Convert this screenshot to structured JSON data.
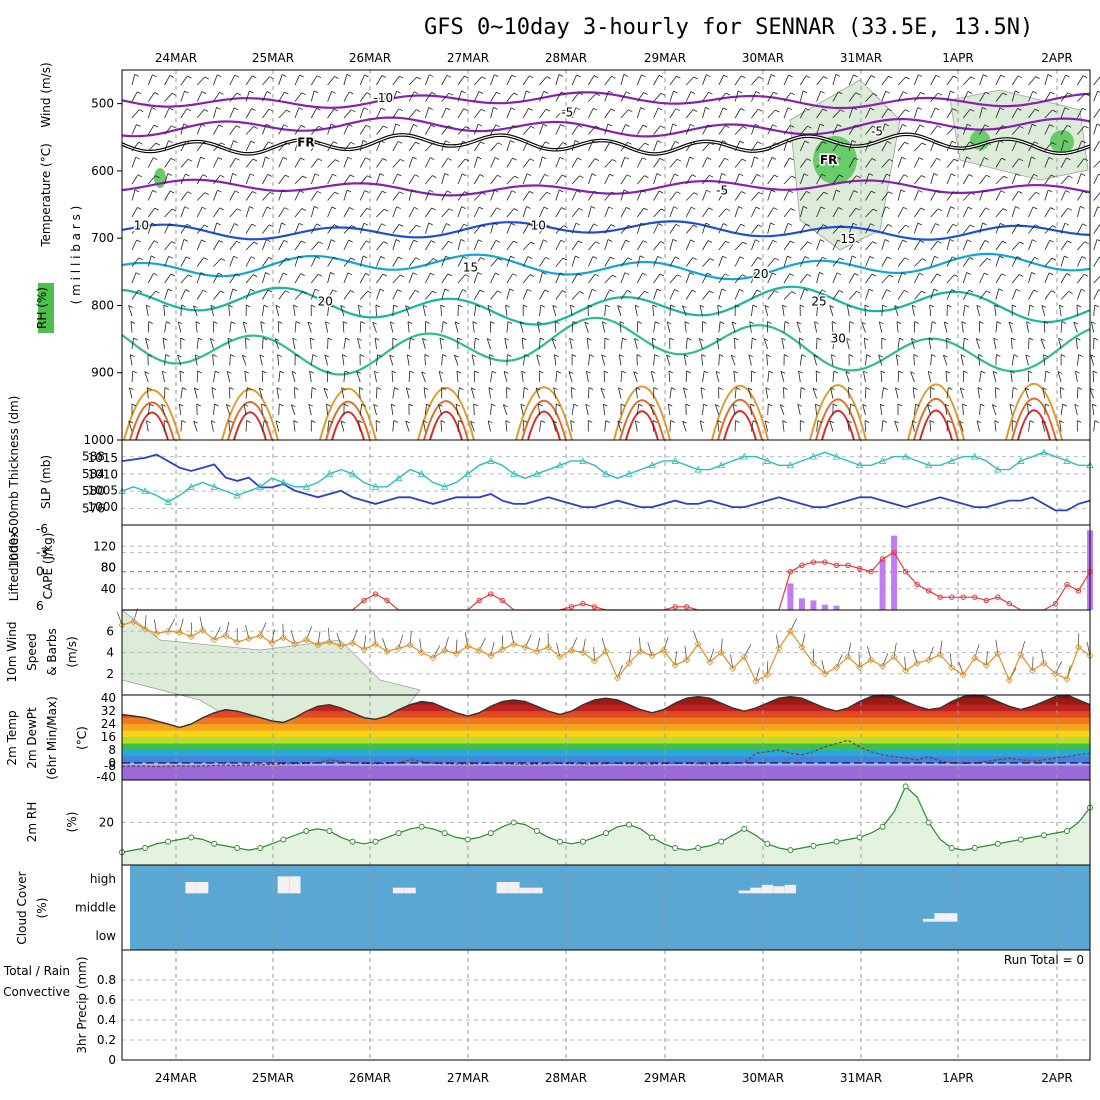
{
  "title": "GFS 0~10day 3-hourly for SENNAR (33.5E, 13.5N)",
  "date_labels": [
    "24MAR",
    "25MAR",
    "26MAR",
    "27MAR",
    "28MAR",
    "29MAR",
    "30MAR",
    "31MAR",
    "1APR",
    "2APR"
  ],
  "run_total": "Run Total = 0",
  "colors": {
    "temp_5": "#8a1fb4",
    "temp_10": "#1f4fd6",
    "temp_15": "#10a6d8",
    "temp_20": "#14b7a0",
    "temp_25": "#2bbf8a",
    "temp_30": "#e09a2a",
    "slp": "#2b3fc4",
    "thickness": "#2cbdbd",
    "cape": "#c07cf0",
    "lifted": "#e43a3a",
    "wind10": "#e0902a",
    "rh2m": "#2e8b2e",
    "cloud": "#5aa7d4"
  },
  "chart_data": [
    {
      "type": "line",
      "panel": "upper-air",
      "ylabel_parts": [
        "RH (%)",
        "Temperature (°C)",
        "Wind (m/s)"
      ],
      "yunit": "( m i l l i b a r s )",
      "ylim": [
        1000,
        450
      ],
      "yticks": [
        500,
        600,
        700,
        800,
        900,
        1000
      ],
      "contour_labels": [
        {
          "text": "-10",
          "x": 0.27,
          "p": 490
        },
        {
          "text": "-5",
          "x": 0.46,
          "p": 512
        },
        {
          "text": "-5",
          "x": 0.78,
          "p": 540
        },
        {
          "text": "-5",
          "x": 0.62,
          "p": 628
        },
        {
          "text": "FR",
          "x": 0.19,
          "p": 556
        },
        {
          "text": "FR",
          "x": 0.73,
          "p": 582
        },
        {
          "text": "10",
          "x": 0.02,
          "p": 680
        },
        {
          "text": "10",
          "x": 0.43,
          "p": 680
        },
        {
          "text": "15",
          "x": 0.36,
          "p": 742
        },
        {
          "text": "15",
          "x": 0.75,
          "p": 700
        },
        {
          "text": "20",
          "x": 0.21,
          "p": 793
        },
        {
          "text": "20",
          "x": 0.66,
          "p": 752
        },
        {
          "text": "25",
          "x": 0.72,
          "p": 793
        },
        {
          "text": "30",
          "x": 0.74,
          "p": 848
        }
      ]
    },
    {
      "type": "line",
      "panel": "slp-thickness",
      "ylabel_left": "1000-500mb Thickness (dm)",
      "ylabel_right": "SLP (mb)",
      "yticks_left": [
        576,
        580,
        584,
        588
      ],
      "yticks_right": [
        1000,
        1005,
        1010,
        1015
      ],
      "series": [
        {
          "name": "SLP",
          "values": [
            1014,
            1014.5,
            1015,
            1016,
            1014,
            1012,
            1011,
            1012,
            1013,
            1009,
            1008,
            1009,
            1006,
            1006,
            1007,
            1005,
            1004,
            1003,
            1004,
            1005,
            1003,
            1002,
            1001,
            1002,
            1003,
            1003,
            1002,
            1001,
            1002,
            1003,
            1003,
            1003,
            1004,
            1002,
            1001,
            1001,
            1002,
            1003,
            1002,
            1001,
            1000,
            1000,
            1001,
            1002,
            1001,
            1000,
            1000,
            1001,
            1002,
            1001,
            1001,
            1002,
            1001,
            1000,
            1000,
            1001,
            1002,
            1003,
            1002,
            1001,
            1000,
            1000,
            1001,
            1002,
            1003,
            1003,
            1002,
            1001,
            1000,
            1001,
            1002,
            1003,
            1002,
            1001,
            1000,
            1000,
            1001,
            1002,
            1002,
            1003,
            1001,
            999,
            999,
            1001,
            1002
          ]
        },
        {
          "name": "Thickness",
          "values": [
            580,
            581,
            580,
            579,
            577.5,
            579,
            581,
            582,
            581,
            580,
            579,
            580,
            581,
            583,
            582,
            581,
            581,
            582,
            584,
            585,
            584,
            582,
            581,
            581,
            583,
            585,
            584,
            582,
            581,
            582,
            584,
            586,
            587,
            586,
            584,
            583,
            584,
            585,
            586,
            587,
            587,
            586,
            584,
            583,
            584,
            585,
            586,
            587,
            587,
            586,
            585,
            585,
            586,
            587,
            588,
            588,
            587,
            586,
            586,
            587,
            588,
            589,
            588,
            587,
            586,
            586,
            587,
            588,
            588,
            587,
            586,
            586,
            587,
            588,
            588,
            587,
            585,
            585,
            587,
            588,
            589,
            588,
            587,
            586,
            586
          ]
        }
      ]
    },
    {
      "type": "bar",
      "panel": "cape-lifted",
      "ylabel_left": "Lifted Index",
      "ylabel_right": "CAPE (J/kg)",
      "yticks_li": [
        6,
        0,
        -3,
        -6
      ],
      "yticks_cape": [
        40,
        80,
        120
      ],
      "cape_values": [
        0,
        0,
        0,
        0,
        0,
        0,
        0,
        0,
        0,
        0,
        0,
        0,
        0,
        0,
        0,
        0,
        0,
        0,
        0,
        0,
        0,
        0,
        0,
        0,
        0,
        0,
        0,
        0,
        0,
        0,
        0,
        0,
        0,
        0,
        0,
        0,
        0,
        0,
        0,
        0,
        0,
        0,
        0,
        0,
        0,
        0,
        0,
        0,
        0,
        0,
        0,
        0,
        0,
        0,
        0,
        0,
        0,
        0,
        50,
        22,
        18,
        10,
        8,
        0,
        0,
        0,
        95,
        140,
        0,
        0,
        0,
        0,
        0,
        0,
        0,
        0,
        0,
        0,
        0,
        0,
        0,
        0,
        0,
        0,
        150
      ],
      "lifted_values": [
        6,
        6,
        6,
        6,
        6,
        6,
        6,
        6,
        6,
        6,
        6,
        6,
        6,
        6,
        6,
        6,
        6,
        6,
        6,
        6,
        6,
        4.5,
        3.5,
        4.5,
        6,
        6,
        6,
        6,
        6,
        6,
        6,
        4.5,
        3.5,
        4.5,
        6,
        6,
        6,
        6,
        6,
        5.5,
        5,
        5.5,
        6,
        6,
        6,
        6,
        6,
        6,
        5.5,
        5.5,
        6,
        6,
        6,
        6,
        6,
        6,
        6,
        6,
        0,
        -1,
        -1.5,
        -1.5,
        -1,
        -1,
        -0.5,
        0,
        -2,
        -3,
        0,
        2,
        3,
        4,
        4,
        4,
        4,
        4.5,
        4,
        5,
        6,
        6,
        6,
        5,
        2,
        3,
        0
      ]
    },
    {
      "type": "line",
      "panel": "wind10m",
      "ylabel": "10m Wind Speed & Barbs (m/s)",
      "yticks": [
        2,
        4,
        6
      ],
      "ylim": [
        0,
        8
      ],
      "values": [
        6.6,
        6.9,
        6.2,
        5.8,
        6.0,
        5.9,
        5.5,
        6.1,
        5.2,
        5.6,
        5.0,
        5.3,
        5.6,
        4.9,
        5.4,
        4.8,
        5.2,
        4.7,
        5.0,
        4.6,
        4.9,
        4.3,
        4.8,
        4.1,
        4.4,
        4.7,
        4.0,
        3.5,
        4.2,
        3.9,
        4.6,
        4.2,
        3.7,
        4.3,
        4.8,
        4.5,
        4.1,
        4.5,
        3.6,
        4.2,
        4.0,
        3.2,
        4.1,
        1.6,
        3.0,
        4.1,
        3.7,
        4.2,
        2.8,
        3.3,
        4.8,
        3.1,
        4.0,
        2.5,
        3.6,
        1.3,
        1.9,
        4.4,
        6.0,
        4.5,
        3.0,
        2.0,
        2.6,
        3.6,
        2.6,
        3.3,
        2.7,
        3.6,
        2.3,
        3.0,
        3.3,
        3.8,
        2.6,
        1.9,
        3.5,
        2.8,
        3.9,
        1.4,
        3.8,
        2.3,
        3.0,
        2.0,
        1.5,
        4.5,
        3.7
      ]
    },
    {
      "type": "area",
      "panel": "temp2m",
      "ylabel": "2m Temp 2m DewPt (6hr Min/Max) (°C)",
      "yticks": [
        -40,
        -8,
        0,
        8,
        16,
        24,
        32,
        40
      ],
      "temp_values": [
        30,
        29,
        28,
        26,
        24,
        22,
        24,
        28,
        31,
        33,
        32,
        30,
        28,
        26,
        25,
        28,
        32,
        35,
        36,
        34,
        31,
        28,
        27,
        29,
        33,
        36,
        38,
        37,
        34,
        31,
        29,
        31,
        35,
        38,
        39,
        38,
        35,
        32,
        30,
        32,
        36,
        39,
        40,
        39,
        36,
        33,
        31,
        33,
        37,
        40,
        41,
        40,
        37,
        34,
        32,
        34,
        37,
        40,
        41,
        40,
        37,
        34,
        32,
        34,
        38,
        41,
        42,
        41,
        38,
        35,
        33,
        34,
        38,
        41,
        42,
        41,
        38,
        35,
        33,
        35,
        38,
        41,
        42,
        39,
        36
      ],
      "dewpt_values": [
        -9,
        -8,
        -9,
        -10,
        -9,
        -8,
        -9,
        -8,
        -7,
        -6,
        -7,
        -6,
        -5,
        -4,
        -3,
        -2,
        -1,
        0,
        2,
        1,
        0,
        -1,
        -2,
        -1,
        0,
        2,
        1,
        -1,
        -2,
        -3,
        -3,
        -2,
        -1,
        -2,
        -3,
        -4,
        -3,
        -2,
        -1,
        -2,
        -3,
        -3,
        -2,
        -1,
        -2,
        -3,
        -3,
        -2,
        -1,
        -1,
        -2,
        -3,
        -2,
        -1,
        0,
        6,
        7,
        8,
        6,
        5,
        7,
        10,
        12,
        14,
        10,
        7,
        5,
        4,
        3,
        2,
        4,
        1,
        0,
        -1,
        0,
        1,
        2,
        3,
        2,
        1,
        2,
        3,
        4,
        5,
        6
      ]
    },
    {
      "type": "area",
      "panel": "rh2m",
      "ylabel": "2m RH",
      "yunit": "(%)",
      "yticks": [
        20
      ],
      "ylim": [
        0,
        40
      ],
      "values": [
        6,
        7,
        8,
        10,
        11,
        12,
        13,
        12,
        10,
        9,
        8,
        7,
        8,
        10,
        12,
        14,
        16,
        17,
        16,
        13,
        11,
        10,
        11,
        13,
        15,
        17,
        18,
        17,
        15,
        13,
        12,
        13,
        15,
        18,
        20,
        19,
        16,
        13,
        11,
        10,
        11,
        13,
        15,
        18,
        19,
        17,
        13,
        10,
        8,
        7,
        8,
        9,
        11,
        14,
        17,
        14,
        10,
        8,
        7,
        8,
        9,
        10,
        11,
        12,
        13,
        15,
        18,
        25,
        37,
        32,
        20,
        12,
        8,
        7,
        8,
        9,
        10,
        11,
        12,
        13,
        14,
        15,
        16,
        20,
        27
      ]
    },
    {
      "type": "bar",
      "panel": "cloud",
      "ylabel": "Cloud Cover (%)",
      "level_labels": [
        "high",
        "middle",
        "low"
      ],
      "high": [
        0,
        0,
        0,
        0,
        0,
        0,
        40,
        40,
        0,
        0,
        0,
        0,
        0,
        0,
        60,
        60,
        0,
        0,
        0,
        0,
        0,
        0,
        0,
        0,
        20,
        20,
        0,
        0,
        0,
        0,
        0,
        0,
        0,
        40,
        40,
        20,
        20,
        0,
        0,
        0,
        0,
        0,
        0,
        0,
        0,
        0,
        0,
        0,
        0,
        0,
        0,
        0,
        0,
        0,
        10,
        20,
        30,
        25,
        30,
        0,
        0,
        0,
        0,
        0,
        0,
        0,
        0,
        0,
        0,
        0,
        0,
        0,
        0,
        0,
        0,
        0,
        0,
        0,
        0,
        0,
        0,
        0,
        0,
        0,
        0
      ],
      "middle": [
        0,
        0,
        0,
        0,
        0,
        0,
        0,
        0,
        0,
        0,
        0,
        0,
        0,
        0,
        0,
        0,
        0,
        0,
        0,
        0,
        0,
        0,
        0,
        0,
        0,
        0,
        0,
        0,
        0,
        0,
        0,
        0,
        0,
        0,
        0,
        0,
        0,
        0,
        0,
        0,
        0,
        0,
        0,
        0,
        0,
        0,
        0,
        0,
        0,
        0,
        0,
        0,
        0,
        0,
        0,
        0,
        0,
        0,
        0,
        0,
        0,
        0,
        0,
        0,
        0,
        0,
        0,
        0,
        0,
        0,
        10,
        30,
        30,
        0,
        0,
        0,
        0,
        0,
        0,
        0,
        0,
        0,
        0,
        0,
        0
      ],
      "low": [
        0,
        0,
        0,
        0,
        0,
        0,
        0,
        0,
        0,
        0,
        0,
        0,
        0,
        0,
        0,
        0,
        0,
        0,
        0,
        0,
        0,
        0,
        0,
        0,
        0,
        0,
        0,
        0,
        0,
        0,
        0,
        0,
        0,
        0,
        0,
        0,
        0,
        0,
        0,
        0,
        0,
        0,
        0,
        0,
        0,
        0,
        0,
        0,
        0,
        0,
        0,
        0,
        0,
        0,
        0,
        0,
        0,
        0,
        0,
        0,
        0,
        0,
        0,
        0,
        0,
        0,
        0,
        0,
        0,
        0,
        0,
        0,
        0,
        0,
        0,
        0,
        0,
        0,
        0,
        0,
        0,
        0,
        0,
        0,
        0
      ]
    },
    {
      "type": "bar",
      "panel": "precip",
      "ylabel_left": "Total / Rain",
      "ylabel_left2": "Convective",
      "ylabel": "3hr Precip (mm)",
      "yticks": [
        0,
        0.2,
        0.4,
        0.6,
        0.8
      ],
      "ylim": [
        0,
        1
      ]
    }
  ]
}
